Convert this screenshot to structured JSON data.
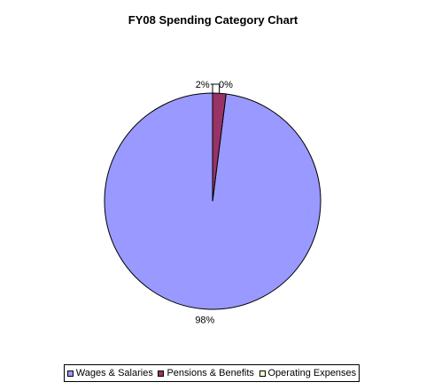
{
  "chart_data": {
    "type": "pie",
    "title": "FY08 Spending Category Chart",
    "slices": [
      {
        "name": "Wages & Salaries",
        "value": 98,
        "label": "98%",
        "color": "#9999ff"
      },
      {
        "name": "Pensions & Benefits",
        "value": 2,
        "label": "2%",
        "color": "#993366"
      },
      {
        "name": "Operating Expenses",
        "value": 0,
        "label": "0%",
        "color": "#ffffcc"
      }
    ],
    "legend_position": "bottom"
  }
}
